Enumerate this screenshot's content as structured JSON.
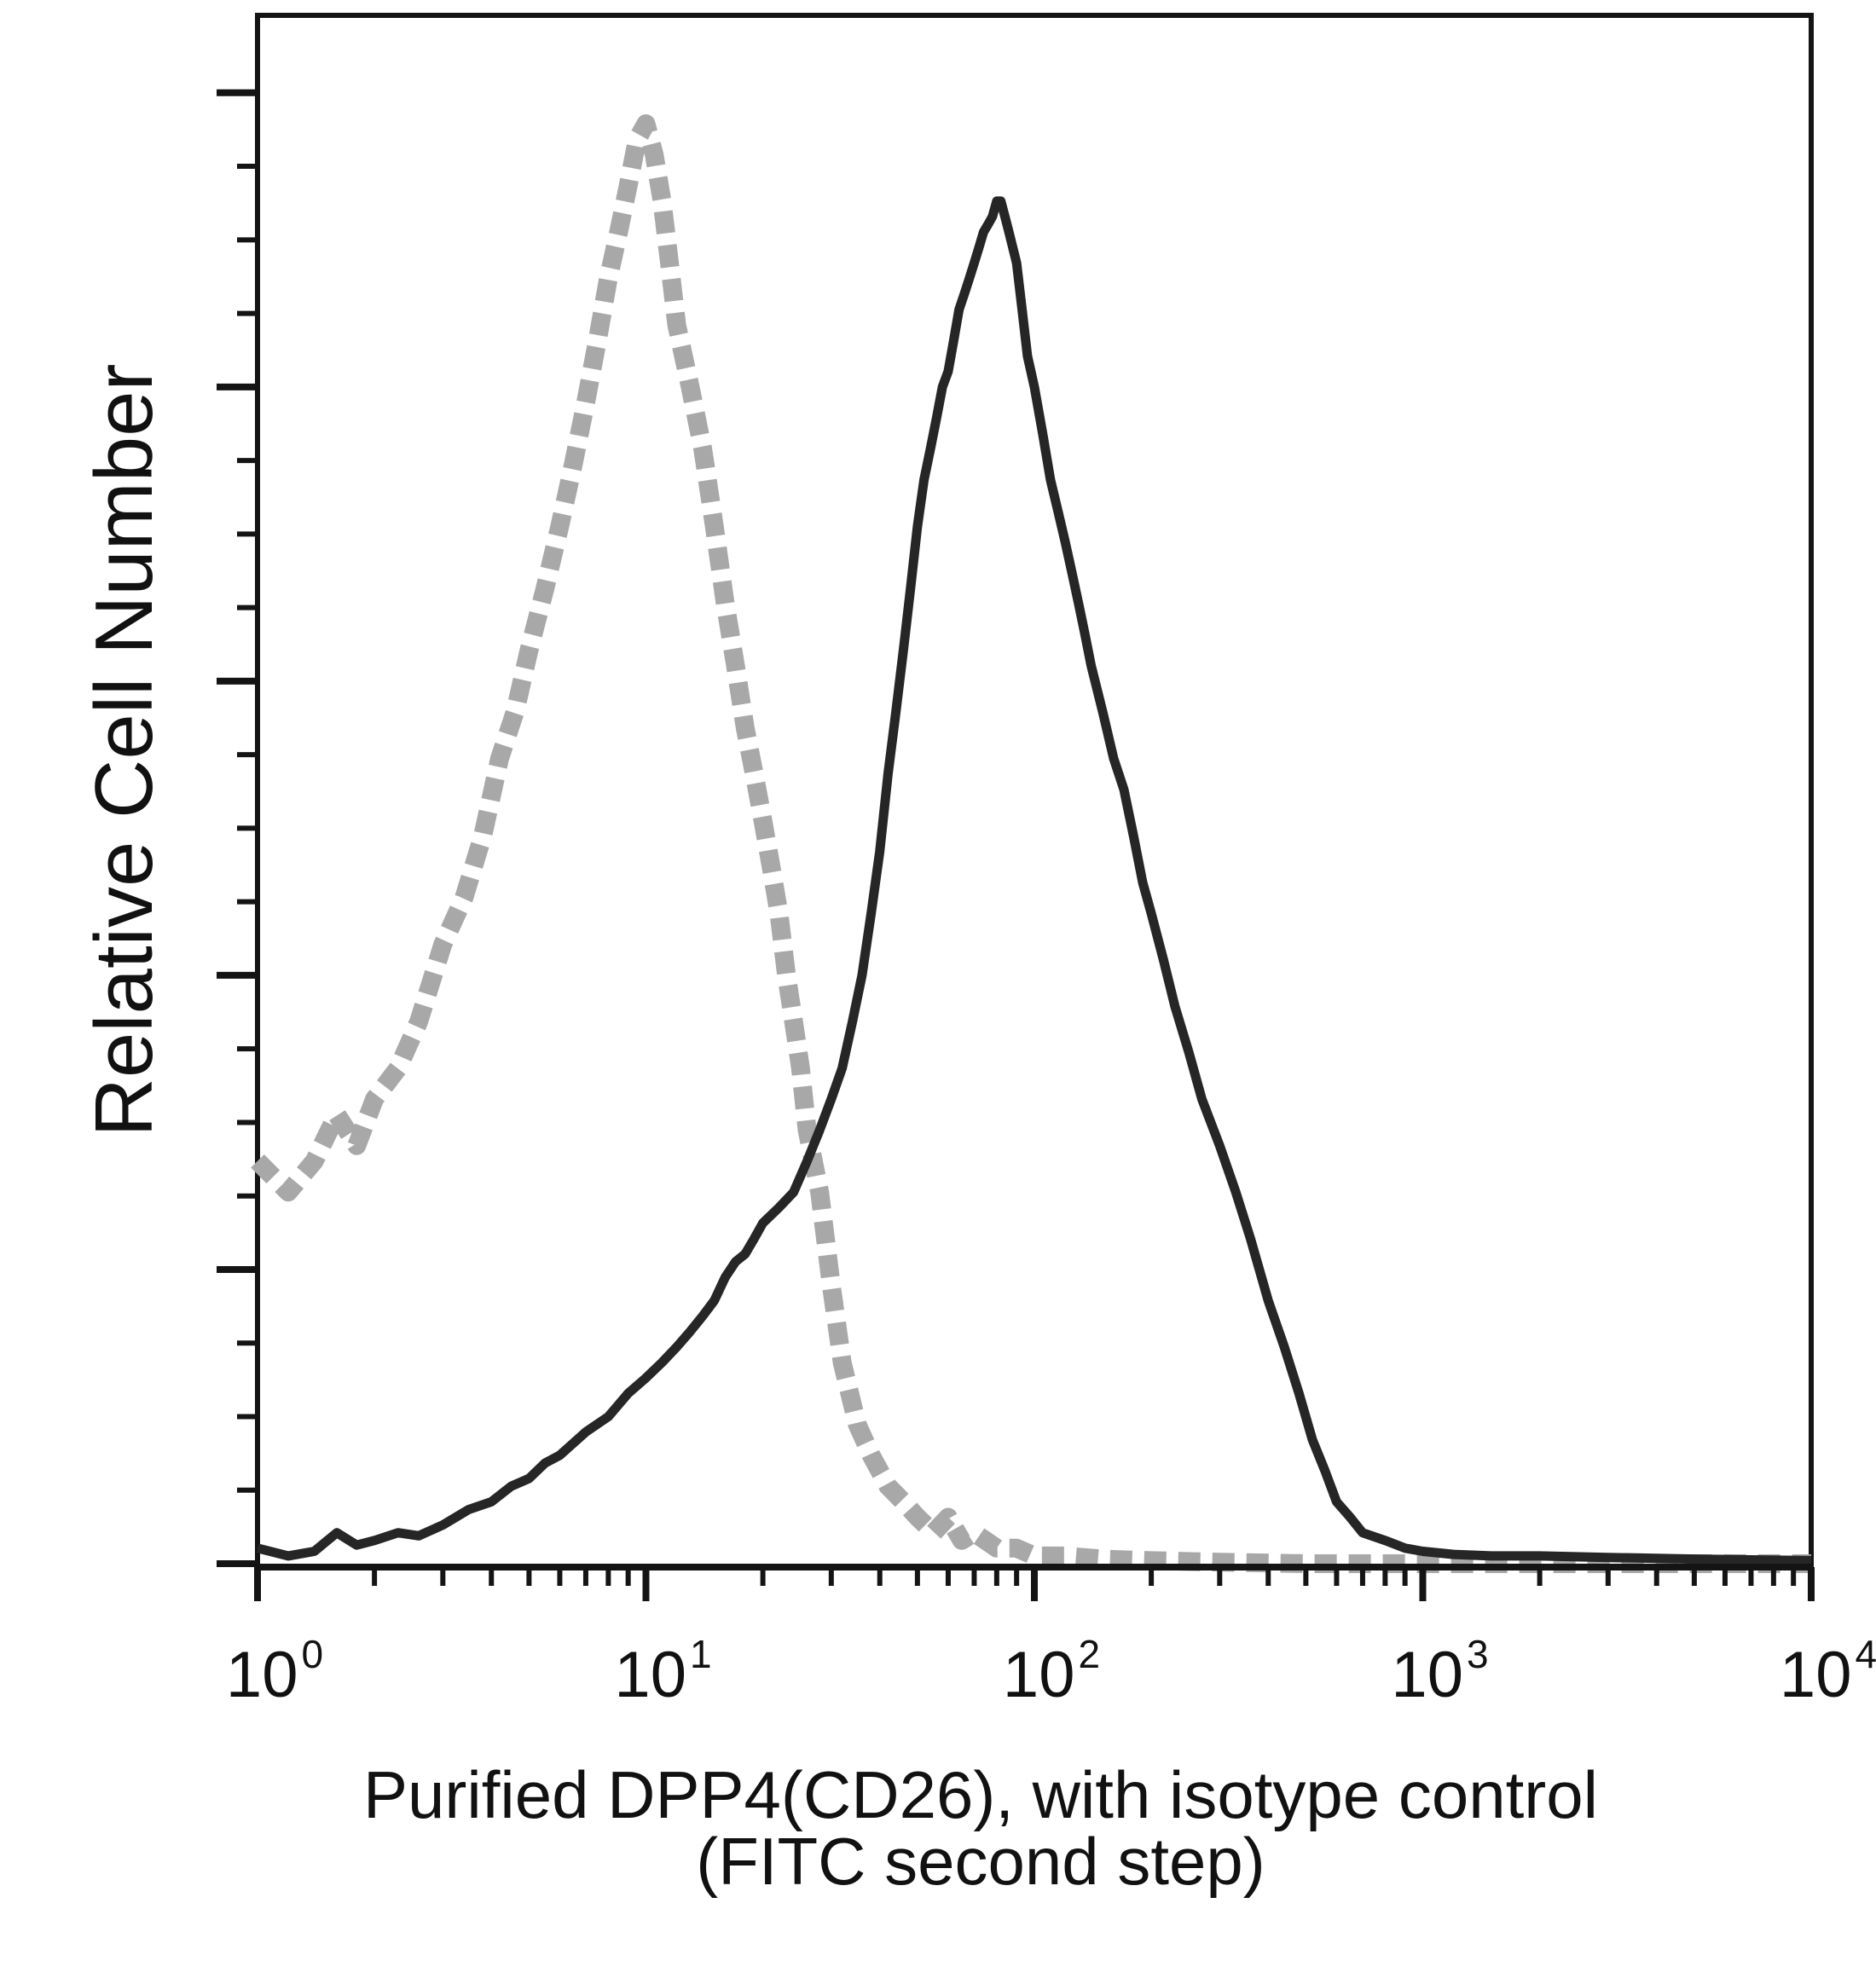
{
  "chart_data": {
    "type": "line",
    "title": "",
    "xlabel_lines": [
      "Purified DPP4(CD26), with isotype control",
      "(FITC second step)"
    ],
    "ylabel": "Relative Cell Number",
    "x_scale": "log",
    "xlim": [
      1,
      10000
    ],
    "ylim": [
      0,
      100
    ],
    "x_ticks": [
      {
        "base": "10",
        "exp": "0"
      },
      {
        "base": "10",
        "exp": "1"
      },
      {
        "base": "10",
        "exp": "2"
      },
      {
        "base": "10",
        "exp": "3"
      },
      {
        "base": "10",
        "exp": "4"
      }
    ],
    "y_major_ticks": [
      0,
      19,
      38,
      57,
      76,
      95
    ],
    "y_minor_step": 4.75,
    "grid": false,
    "series": [
      {
        "color": "#a8a8a8",
        "style": "dashed",
        "x": [
          1,
          1.2,
          1.4,
          1.6,
          1.8,
          2,
          2.3,
          2.6,
          3,
          3.4,
          3.8,
          4.2,
          4.6,
          5,
          5.5,
          6,
          6.5,
          7,
          7.5,
          8,
          8.5,
          9,
          9.5,
          10,
          10.5,
          11,
          11.5,
          12,
          13,
          14,
          15,
          16,
          17,
          18,
          19,
          20,
          21,
          22,
          23,
          24,
          25,
          26,
          28,
          30,
          32,
          35,
          38,
          42,
          46,
          50,
          55,
          60,
          65,
          70,
          80,
          90,
          100,
          120,
          150,
          200,
          300,
          500,
          1000,
          3000,
          10000
        ],
        "y": [
          26,
          24,
          26,
          29,
          27,
          30,
          32,
          35,
          40,
          43,
          47,
          52,
          55,
          59,
          63,
          67,
          71,
          75,
          79,
          83,
          86,
          89,
          92,
          93,
          91,
          88,
          84,
          80,
          76,
          72,
          67,
          62,
          58,
          54,
          51,
          48,
          45,
          42,
          38,
          35,
          32,
          28,
          24,
          18,
          13,
          9,
          7,
          5,
          4,
          3,
          2,
          3,
          1.5,
          2,
          1,
          1,
          0.5,
          0.5,
          0.3,
          0.2,
          0.1,
          0,
          0,
          0,
          0
        ]
      },
      {
        "color": "#262626",
        "style": "solid",
        "x": [
          1,
          1.2,
          1.4,
          1.6,
          1.8,
          2,
          2.3,
          2.6,
          3,
          3.5,
          4,
          4.5,
          5,
          5.5,
          6,
          7,
          8,
          9,
          10,
          11,
          12,
          13,
          14,
          15,
          16,
          17,
          18,
          19,
          20,
          22,
          24,
          26,
          28,
          30,
          32,
          34,
          36,
          38,
          40,
          42,
          44,
          46,
          48,
          50,
          52,
          54,
          56,
          58,
          60,
          62,
          64,
          66,
          68,
          70,
          72,
          74,
          76,
          78,
          80,
          82,
          84,
          86,
          88,
          90,
          93,
          96,
          100,
          105,
          110,
          115,
          120,
          125,
          130,
          135,
          140,
          150,
          160,
          170,
          180,
          190,
          200,
          215,
          230,
          250,
          270,
          300,
          330,
          360,
          400,
          440,
          480,
          520,
          560,
          600,
          650,
          700,
          800,
          900,
          1000,
          1200,
          1500,
          2000,
          3000,
          5000,
          10000
        ],
        "y": [
          1,
          0.5,
          0.8,
          2,
          1.2,
          1.5,
          2,
          1.8,
          2.5,
          3.5,
          4,
          5,
          5.5,
          6.5,
          7,
          8.5,
          9.5,
          11,
          12,
          13,
          14,
          15,
          16,
          17,
          18.5,
          19.5,
          20,
          21,
          22,
          23,
          24,
          26,
          28,
          30,
          32,
          35,
          38,
          42,
          46,
          51,
          55,
          59,
          63,
          67,
          70,
          72,
          74,
          76,
          77,
          79,
          81,
          82,
          83,
          84,
          85,
          86,
          86.5,
          87,
          88,
          88,
          87,
          86,
          85,
          84,
          81,
          78,
          76,
          73,
          70,
          68,
          66,
          64,
          62,
          60,
          58,
          55,
          52,
          50,
          47,
          44,
          42,
          39,
          36,
          33,
          30,
          27,
          24,
          21,
          17,
          14,
          11,
          8,
          6,
          4,
          3,
          2,
          1.5,
          1,
          0.8,
          0.6,
          0.5,
          0.5,
          0.4,
          0.3,
          0.2
        ]
      }
    ]
  }
}
